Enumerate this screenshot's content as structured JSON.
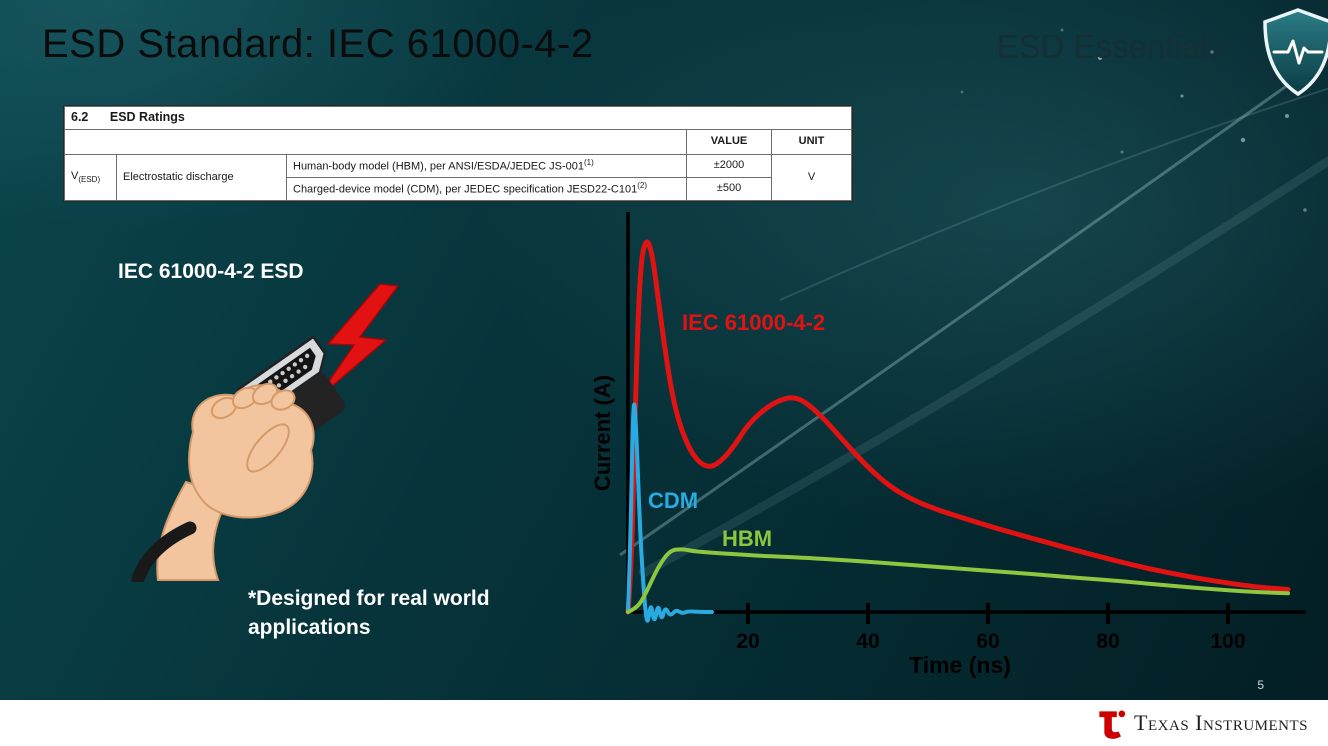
{
  "slide": {
    "title": "ESD Standard: IEC 61000-4-2",
    "series_label": "ESD Essentials",
    "page_number": "5",
    "footer_brand": "Texas Instruments"
  },
  "table": {
    "caption_num": "6.2",
    "caption_text": "ESD Ratings",
    "col_headers": {
      "value": "VALUE",
      "unit": "UNIT"
    },
    "symbol": "V",
    "symbol_sub": "(ESD)",
    "parameter": "Electrostatic discharge",
    "rows": [
      {
        "model": "Human-body model (HBM), per ANSI/ESDA/JEDEC JS-001",
        "sup": "(1)",
        "value": "±2000"
      },
      {
        "model": "Charged-device model (CDM), per JEDEC specification JESD22-C101",
        "sup": "(2)",
        "value": "±500"
      }
    ],
    "unit": "V"
  },
  "illustration": {
    "label": "IEC 61000-4-2 ESD",
    "caption": "*Designed for real world applications"
  },
  "chart_data": {
    "type": "line",
    "title": "",
    "xlabel": "Time (ns)",
    "ylabel": "Current (A)",
    "xlim": [
      0,
      112
    ],
    "ylim_normalized": [
      -0.06,
      1.05
    ],
    "x_ticks": [
      20,
      40,
      60,
      80,
      100
    ],
    "grid": false,
    "legend_position": "inline-labels",
    "series": [
      {
        "name": "IEC 61000-4-2",
        "color": "#e11212",
        "points": [
          [
            0,
            0
          ],
          [
            0.6,
            0.12
          ],
          [
            1.2,
            0.55
          ],
          [
            2,
            0.92
          ],
          [
            3,
            1.0
          ],
          [
            4,
            0.96
          ],
          [
            5,
            0.84
          ],
          [
            6.5,
            0.66
          ],
          [
            8,
            0.53
          ],
          [
            10,
            0.44
          ],
          [
            12,
            0.395
          ],
          [
            14,
            0.385
          ],
          [
            16,
            0.41
          ],
          [
            18,
            0.45
          ],
          [
            20,
            0.5
          ],
          [
            23,
            0.545
          ],
          [
            26,
            0.57
          ],
          [
            28,
            0.572
          ],
          [
            30,
            0.555
          ],
          [
            33,
            0.51
          ],
          [
            36,
            0.455
          ],
          [
            40,
            0.385
          ],
          [
            44,
            0.33
          ],
          [
            48,
            0.295
          ],
          [
            52,
            0.27
          ],
          [
            56,
            0.25
          ],
          [
            60,
            0.23
          ],
          [
            65,
            0.207
          ],
          [
            70,
            0.185
          ],
          [
            75,
            0.163
          ],
          [
            80,
            0.142
          ],
          [
            85,
            0.122
          ],
          [
            90,
            0.105
          ],
          [
            95,
            0.09
          ],
          [
            100,
            0.077
          ],
          [
            105,
            0.066
          ],
          [
            110,
            0.06
          ]
        ]
      },
      {
        "name": "CDM",
        "color": "#29abe2",
        "points": [
          [
            0,
            0
          ],
          [
            0.4,
            0.18
          ],
          [
            0.9,
            0.6
          ],
          [
            1.4,
            0.48
          ],
          [
            2,
            0.22
          ],
          [
            2.6,
            0.06
          ],
          [
            3.2,
            -0.045
          ],
          [
            3.8,
            0.03
          ],
          [
            4.4,
            -0.035
          ],
          [
            5,
            0.025
          ],
          [
            5.6,
            -0.025
          ],
          [
            6.2,
            0.015
          ],
          [
            7,
            -0.012
          ],
          [
            8,
            0.006
          ],
          [
            9,
            -0.004
          ],
          [
            10,
            0.002
          ],
          [
            12,
            0
          ],
          [
            14,
            0
          ]
        ]
      },
      {
        "name": "HBM",
        "color": "#8dc63f",
        "points": [
          [
            0,
            0
          ],
          [
            1.5,
            0.01
          ],
          [
            3,
            0.05
          ],
          [
            5,
            0.12
          ],
          [
            7,
            0.165
          ],
          [
            9,
            0.168
          ],
          [
            11,
            0.162
          ],
          [
            14,
            0.158
          ],
          [
            18,
            0.154
          ],
          [
            22,
            0.15
          ],
          [
            26,
            0.147
          ],
          [
            30,
            0.144
          ],
          [
            35,
            0.139
          ],
          [
            40,
            0.134
          ],
          [
            45,
            0.128
          ],
          [
            50,
            0.122
          ],
          [
            55,
            0.116
          ],
          [
            60,
            0.11
          ],
          [
            65,
            0.104
          ],
          [
            70,
            0.098
          ],
          [
            75,
            0.091
          ],
          [
            80,
            0.085
          ],
          [
            85,
            0.078
          ],
          [
            90,
            0.071
          ],
          [
            95,
            0.064
          ],
          [
            100,
            0.058
          ],
          [
            105,
            0.053
          ],
          [
            110,
            0.05
          ]
        ]
      }
    ]
  },
  "colors": {
    "background_teal": "#07343b",
    "iec_red": "#e11212",
    "cdm_blue": "#29abe2",
    "hbm_green": "#8dc63f",
    "footer_bg": "#ffffff",
    "ti_red": "#cc0000",
    "axis_black": "#000000"
  }
}
